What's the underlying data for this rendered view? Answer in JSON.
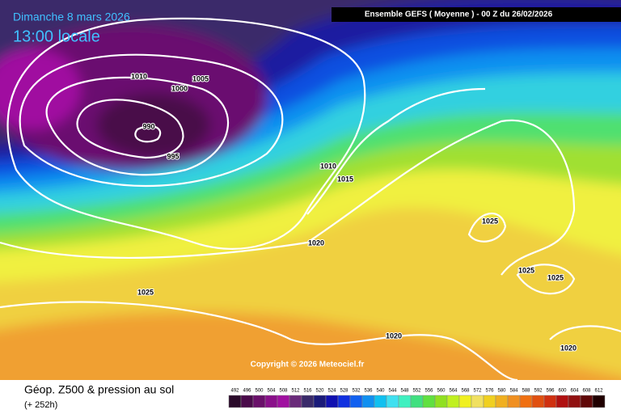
{
  "header": {
    "day": "Dimanche 8 mars 2026",
    "time": "13:00 locale",
    "run": "Ensemble GEFS  ( Moyenne )  - 00 Z du 26/02/2026"
  },
  "isobar_labels": [
    "1010",
    "1005",
    "1000",
    "990",
    "995",
    "1010",
    "1015",
    "1020",
    "1025",
    "1025",
    "1025",
    "1025",
    "1020",
    "1020"
  ],
  "copyright": "Copyright © 2026 Meteociel.fr",
  "footer": {
    "title": "Géop. Z500 & pression au sol",
    "lead": "(+ 252h)"
  },
  "scale": {
    "labels": [
      492,
      496,
      500,
      504,
      508,
      512,
      516,
      520,
      524,
      528,
      532,
      536,
      540,
      544,
      548,
      552,
      556,
      560,
      564,
      568,
      572,
      576,
      580,
      584,
      588,
      592,
      596,
      600,
      604,
      608,
      612
    ],
    "colors": [
      "#2a0a2a",
      "#4a0a4a",
      "#6a106a",
      "#8a108a",
      "#a010a0",
      "#6a2a7a",
      "#3a2a6a",
      "#1a1a7a",
      "#1010b0",
      "#1030e0",
      "#1060f0",
      "#1090f0",
      "#10c0f0",
      "#40e0f0",
      "#40f0c0",
      "#40e080",
      "#60e040",
      "#90e020",
      "#c0f020",
      "#f0f020",
      "#f0e060",
      "#f0d020",
      "#f0b020",
      "#f09020",
      "#f07010",
      "#e05010",
      "#d03010",
      "#b01010",
      "#901010",
      "#600808",
      "#200000"
    ]
  }
}
